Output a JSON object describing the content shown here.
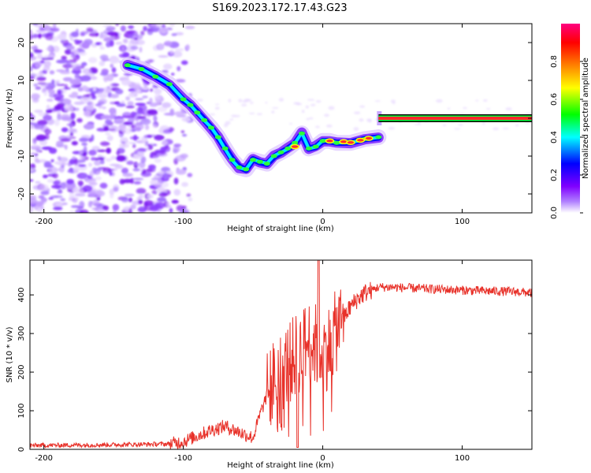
{
  "title": "S169.2023.172.17.43.G23",
  "chart_data": [
    {
      "type": "heatmap",
      "xlabel": "Height of straight line (km)",
      "ylabel": "Frequency (Hz)",
      "xlim": [
        -210,
        150
      ],
      "ylim": [
        -25,
        25
      ],
      "xticks": [
        -200,
        -100,
        0,
        100
      ],
      "yticks": [
        -20,
        -10,
        0,
        10,
        20
      ],
      "colorbar": {
        "label": "Normalized spectral amplitude",
        "range": [
          0,
          1
        ],
        "ticks": [
          "0.0",
          "0.2",
          "0.4",
          "0.6",
          "0.8"
        ],
        "colors": [
          "#ffffff",
          "#8000ff",
          "#0000ff",
          "#00ffff",
          "#00ff00",
          "#ffff00",
          "#ff8000",
          "#ff0000",
          "#ff0080"
        ]
      },
      "ridge": {
        "x": [
          -140,
          -130,
          -120,
          -110,
          -100,
          -95,
          -90,
          -85,
          -80,
          -75,
          -70,
          -65,
          -60,
          -55,
          -50,
          -45,
          -40,
          -35,
          -30,
          -25,
          -20,
          -15,
          -10,
          -5,
          0,
          5,
          10,
          20,
          30,
          40
        ],
        "y": [
          14,
          13,
          11,
          9,
          5,
          3.5,
          1.5,
          -0.5,
          -2.5,
          -5,
          -8,
          -11,
          -13,
          -13.5,
          -11,
          -11.5,
          -12,
          -10,
          -9,
          -8,
          -6.5,
          -4,
          -8,
          -7.5,
          -6,
          -6,
          -6.5,
          -6.5,
          -5.5,
          -5
        ]
      },
      "line": {
        "x_start": 40,
        "x_end": 150,
        "y": 0
      }
    },
    {
      "type": "line",
      "xlabel": "Height of straight line (km)",
      "ylabel": "SNR (10 * v/v)",
      "xlim": [
        -210,
        150
      ],
      "ylim": [
        0,
        490
      ],
      "xticks": [
        -200,
        -100,
        0,
        100
      ],
      "yticks": [
        0,
        100,
        200,
        300,
        400
      ],
      "color": "#e8322a",
      "envelope": {
        "x": [
          -210,
          -150,
          -110,
          -100,
          -90,
          -80,
          -70,
          -60,
          -50,
          -45,
          -40,
          -35,
          -30,
          -25,
          -20,
          -15,
          -10,
          -5,
          0,
          5,
          10,
          15,
          20,
          25,
          30,
          40,
          50,
          60,
          80,
          100,
          120,
          140,
          150
        ],
        "y": [
          10,
          12,
          14,
          20,
          35,
          50,
          60,
          45,
          30,
          90,
          140,
          180,
          200,
          220,
          240,
          260,
          280,
          270,
          250,
          270,
          310,
          340,
          370,
          390,
          405,
          420,
          420,
          418,
          415,
          412,
          410,
          408,
          405
        ]
      }
    }
  ]
}
